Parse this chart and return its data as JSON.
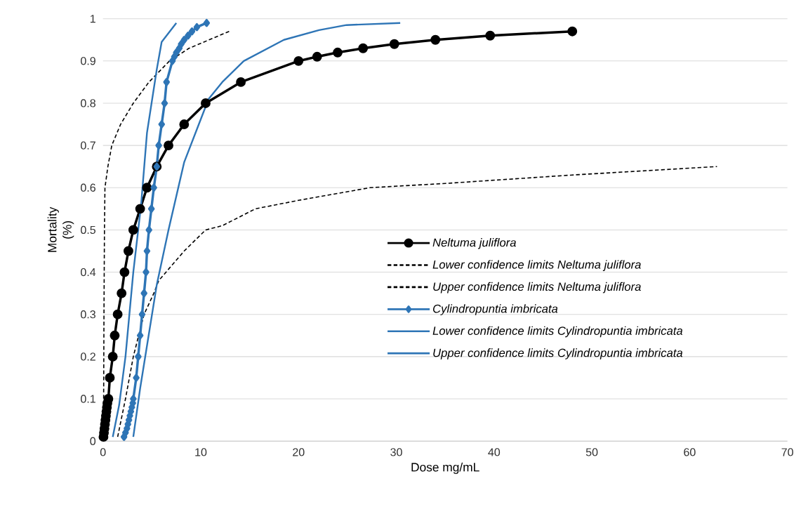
{
  "chart_data": {
    "type": "line",
    "xlabel": "Dose mg/mL",
    "ylabel": "Mortality (%)",
    "xlim": [
      0,
      70
    ],
    "xticks": [
      0,
      10,
      20,
      30,
      40,
      50,
      60,
      70
    ],
    "ylim": [
      0,
      1
    ],
    "yticks": [
      0,
      0.1,
      0.2,
      0.3,
      0.4,
      0.5,
      0.6,
      0.7,
      0.8,
      0.9,
      1
    ],
    "grid": "y",
    "legend": "right",
    "series": [
      {
        "name": "Neltuma juliflora",
        "color": "#000000",
        "marker": "circle",
        "line_style": "solid",
        "x": [
          0.05,
          0.1,
          0.15,
          0.2,
          0.25,
          0.3,
          0.35,
          0.4,
          0.45,
          0.55,
          0.7,
          1.0,
          1.2,
          1.5,
          1.9,
          2.2,
          2.6,
          3.1,
          3.8,
          4.5,
          5.5,
          6.7,
          8.3,
          10.5,
          14.1,
          20.0,
          21.9,
          24.0,
          26.6,
          29.8,
          34.0,
          39.6,
          48.0
        ],
        "values": [
          0.01,
          0.02,
          0.03,
          0.04,
          0.05,
          0.06,
          0.07,
          0.08,
          0.09,
          0.1,
          0.15,
          0.2,
          0.25,
          0.3,
          0.35,
          0.4,
          0.45,
          0.5,
          0.55,
          0.6,
          0.65,
          0.7,
          0.75,
          0.8,
          0.85,
          0.9,
          0.91,
          0.92,
          0.93,
          0.94,
          0.95,
          0.96,
          0.97
        ]
      },
      {
        "name": "Lower confidence limits Neltuma juliflora",
        "color": "#000000",
        "marker": "none",
        "line_style": "dashed",
        "x": [
          0.05,
          0.1,
          0.15,
          0.2,
          0.5,
          0.9,
          1.8,
          3.1,
          4.7,
          6.8,
          8.8,
          12.9
        ],
        "values": [
          0.0,
          0.3,
          0.5,
          0.6,
          0.65,
          0.7,
          0.75,
          0.8,
          0.85,
          0.9,
          0.93,
          0.97
        ]
      },
      {
        "name": "Upper confidence limits Neltuma juliflora",
        "color": "#000000",
        "marker": "none",
        "line_style": "dashed",
        "x": [
          1.5,
          2.3,
          3.1,
          4.2,
          5.2,
          5.7,
          8.3,
          10.5,
          12.2,
          15.6,
          20.0,
          27.3,
          35.0,
          48.0,
          62.8
        ],
        "values": [
          0.01,
          0.1,
          0.2,
          0.3,
          0.35,
          0.38,
          0.45,
          0.5,
          0.51,
          0.55,
          0.57,
          0.6,
          0.61,
          0.63,
          0.65
        ]
      },
      {
        "name": "Cylindropuntia imbricata",
        "color": "#2e75b6",
        "marker": "diamond",
        "line_style": "solid",
        "x": [
          2.15,
          2.3,
          2.45,
          2.55,
          2.65,
          2.75,
          2.85,
          2.95,
          3.05,
          3.1,
          3.4,
          3.6,
          3.8,
          4.0,
          4.2,
          4.4,
          4.5,
          4.7,
          4.95,
          5.2,
          5.5,
          5.7,
          6.0,
          6.3,
          6.5,
          7.1,
          7.3,
          7.5,
          7.8,
          8.0,
          8.3,
          8.7,
          9.1,
          9.6,
          10.6
        ],
        "values": [
          0.01,
          0.02,
          0.03,
          0.04,
          0.05,
          0.06,
          0.07,
          0.08,
          0.09,
          0.1,
          0.15,
          0.2,
          0.25,
          0.3,
          0.35,
          0.4,
          0.45,
          0.5,
          0.55,
          0.6,
          0.65,
          0.7,
          0.75,
          0.8,
          0.85,
          0.9,
          0.91,
          0.92,
          0.93,
          0.94,
          0.95,
          0.96,
          0.97,
          0.98,
          0.99
        ]
      },
      {
        "name": "Lower confidence limits Cylindropuntia imbricata",
        "color": "#2e75b6",
        "marker": "none",
        "line_style": "solid",
        "x": [
          1.0,
          1.65,
          2.3,
          2.7,
          3.1,
          3.9,
          4.5,
          5.5,
          6.0,
          7.5
        ],
        "values": [
          0.01,
          0.085,
          0.2,
          0.3,
          0.4,
          0.56,
          0.73,
          0.88,
          0.945,
          0.99
        ]
      },
      {
        "name": "Upper confidence limits Cylindropuntia imbricata",
        "color": "#2e75b6",
        "marker": "none",
        "line_style": "solid",
        "x": [
          3.1,
          3.8,
          5.5,
          6.7,
          8.3,
          10.8,
          12.2,
          14.4,
          18.5,
          22.1,
          24.9,
          30.4
        ],
        "values": [
          0.01,
          0.125,
          0.37,
          0.5,
          0.66,
          0.81,
          0.85,
          0.9,
          0.95,
          0.973,
          0.985,
          0.99
        ]
      }
    ]
  }
}
